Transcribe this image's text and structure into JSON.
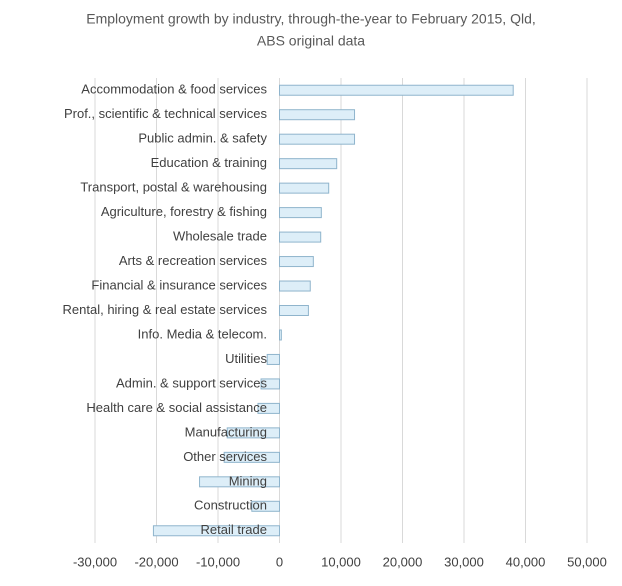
{
  "chart_data": {
    "type": "barh",
    "title": [
      "Employment growth by industry, through-the-year to February 2015, Qld,",
      "ABS original data"
    ],
    "categories": [
      "Accommodation & food services",
      "Prof., scientific & technical services",
      "Public admin. & safety",
      "Education & training",
      "Transport, postal & warehousing",
      "Agriculture, forestry & fishing",
      "Wholesale trade",
      "Arts & recreation services",
      "Financial & insurance services",
      "Rental, hiring & real estate services",
      "Info. Media & telecom.",
      "Utilities",
      "Admin. & support services",
      "Health care & social assistance",
      "Manufacturing",
      "Other services",
      "Mining",
      "Construction",
      "Retail trade"
    ],
    "values": [
      38000,
      12200,
      12200,
      9300,
      8000,
      6800,
      6700,
      5500,
      5000,
      4700,
      300,
      -2000,
      -3000,
      -3500,
      -8500,
      -9000,
      -13000,
      -4500,
      -20500
    ],
    "color": "#ddeef8",
    "edge_color": "#8fb4cc",
    "xlim": [
      -30000,
      50000
    ],
    "xticks": [
      {
        "value": -30000,
        "label": "-30,000"
      },
      {
        "value": -20000,
        "label": "-20,000"
      },
      {
        "value": -10000,
        "label": "-10,000"
      },
      0,
      {
        "value": 10000,
        "label": "10,000"
      },
      {
        "value": 20000,
        "label": "20,000"
      },
      {
        "value": 30000,
        "label": "30,000"
      },
      {
        "value": 40000,
        "label": "40,000"
      },
      {
        "value": 50000,
        "label": "50,000"
      }
    ],
    "grid": true
  }
}
